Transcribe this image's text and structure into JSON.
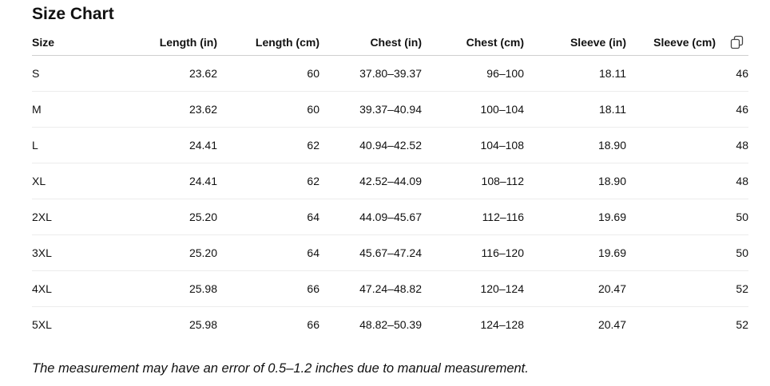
{
  "header": {
    "title": "Size Chart"
  },
  "table": {
    "columns": [
      "Size",
      "Length (in)",
      "Length (cm)",
      "Chest (in)",
      "Chest (cm)",
      "Sleeve (in)",
      "Sleeve (cm)"
    ],
    "rows": [
      [
        "S",
        "23.62",
        "60",
        "37.80–39.37",
        "96–100",
        "18.11",
        "46"
      ],
      [
        "M",
        "23.62",
        "60",
        "39.37–40.94",
        "100–104",
        "18.11",
        "46"
      ],
      [
        "L",
        "24.41",
        "62",
        "40.94–42.52",
        "104–108",
        "18.90",
        "48"
      ],
      [
        "XL",
        "24.41",
        "62",
        "42.52–44.09",
        "108–112",
        "18.90",
        "48"
      ],
      [
        "2XL",
        "25.20",
        "64",
        "44.09–45.67",
        "112–116",
        "19.69",
        "50"
      ],
      [
        "3XL",
        "25.20",
        "64",
        "45.67–47.24",
        "116–120",
        "19.69",
        "50"
      ],
      [
        "4XL",
        "25.98",
        "66",
        "47.24–48.82",
        "120–124",
        "20.47",
        "52"
      ],
      [
        "5XL",
        "25.98",
        "66",
        "48.82–50.39",
        "124–128",
        "20.47",
        "52"
      ]
    ]
  },
  "footnote": "The measurement may have an error of 0.5–1.2 inches due to manual measurement."
}
